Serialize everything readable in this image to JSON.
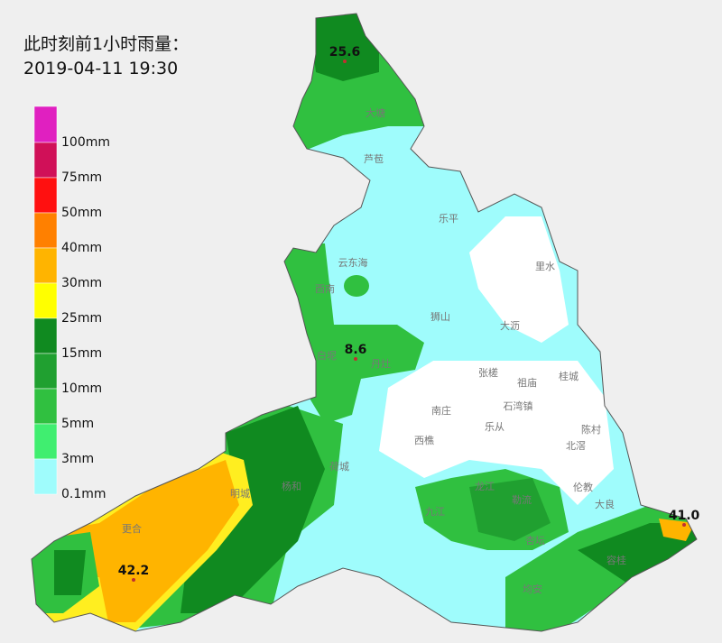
{
  "header": {
    "title": "此时刻前1小时雨量：",
    "time": "2019-04-11 19:30"
  },
  "legend": [
    "100mm",
    "75mm",
    "50mm",
    "40mm",
    "30mm",
    "25mm",
    "15mm",
    "10mm",
    "5mm",
    "3mm",
    "0.1mm"
  ],
  "stations": [
    "25.6",
    "8.6",
    "42.2",
    "41.0"
  ],
  "places": [
    "大塘",
    "芦苞",
    "乐平",
    "云东海",
    "西南",
    "狮山",
    "大沥",
    "里水",
    "白坭",
    "丹灶",
    "张槎",
    "祖庙",
    "桂城",
    "石湾镇",
    "南庄",
    "乐从",
    "西樵",
    "陈村",
    "北滘",
    "荷城",
    "杨和",
    "明城",
    "更合",
    "九江",
    "龙江",
    "勒流",
    "伦教",
    "大良",
    "杏坛",
    "容桂",
    "均安"
  ]
}
